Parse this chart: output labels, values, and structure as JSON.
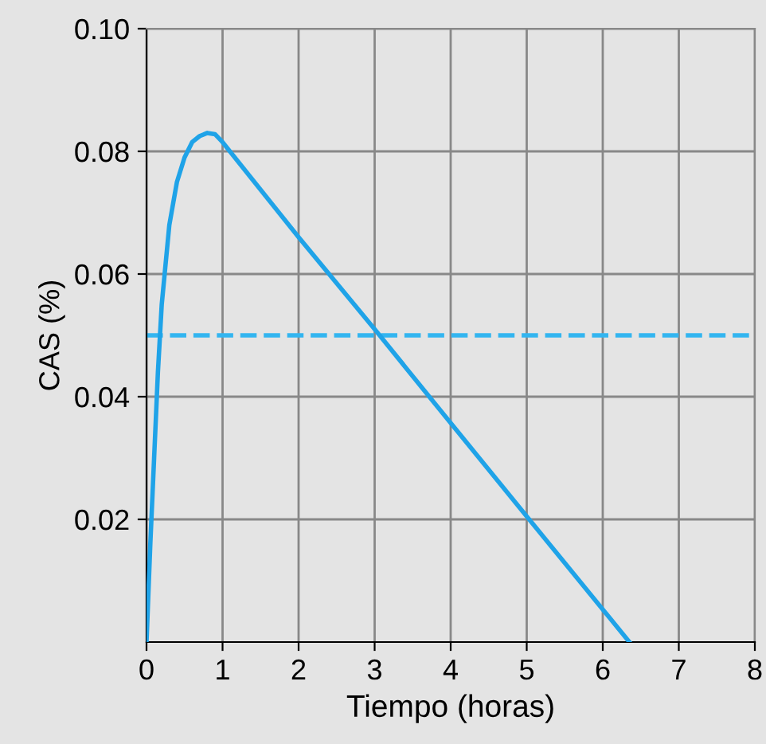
{
  "chart_data": {
    "type": "line",
    "xlabel": "Tiempo (horas)",
    "ylabel": "CAS (%)",
    "series": [
      {
        "color": "#1fa3e8",
        "x": [
          0,
          0.05,
          0.1,
          0.15,
          0.2,
          0.3,
          0.4,
          0.5,
          0.6,
          0.7,
          0.8,
          0.9,
          1.0,
          2.0,
          3.0,
          4.0,
          5.0,
          6.35
        ],
        "values": [
          0,
          0.016,
          0.03,
          0.044,
          0.055,
          0.068,
          0.075,
          0.079,
          0.0815,
          0.0825,
          0.083,
          0.0828,
          0.0815,
          0.066,
          0.051,
          0.0357,
          0.0205,
          0
        ]
      }
    ],
    "xlim": [
      0,
      8
    ],
    "xticks": [
      0,
      1,
      2,
      3,
      4,
      5,
      6,
      7,
      8
    ],
    "ylim": [
      0,
      0.1
    ],
    "yticks": [
      0.02,
      0.04,
      0.06,
      0.08,
      {
        "value": 0.1,
        "label": "0.10"
      }
    ],
    "ref_lines": [
      {
        "axis": "y",
        "value": 0.05,
        "color": "#33b5f0",
        "line_style": "dashed"
      }
    ],
    "grid": true,
    "marker": "none",
    "line_style": "solid"
  }
}
